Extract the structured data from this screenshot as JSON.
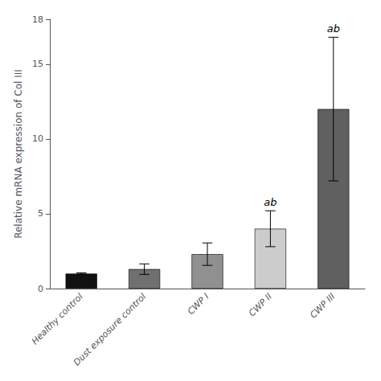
{
  "chart_data": {
    "type": "bar",
    "categories": [
      "Healthy control",
      "Dust exposure control",
      "CWP I",
      "CWP II",
      "CWP III"
    ],
    "values": [
      1.0,
      1.3,
      2.3,
      4.0,
      12.0
    ],
    "errors": [
      0.05,
      0.35,
      0.75,
      1.2,
      4.8
    ],
    "colors": [
      "#111111",
      "#707070",
      "#909090",
      "#cccccc",
      "#606060"
    ],
    "annotations": [
      {
        "category": "CWP II",
        "text": "ab"
      },
      {
        "category": "CWP III",
        "text": "ab"
      }
    ],
    "ylabel": "Relative mRNA expression of Col III",
    "ylim": [
      0,
      18
    ],
    "yticks": [
      0,
      5,
      10,
      15
    ],
    "grid": false
  }
}
